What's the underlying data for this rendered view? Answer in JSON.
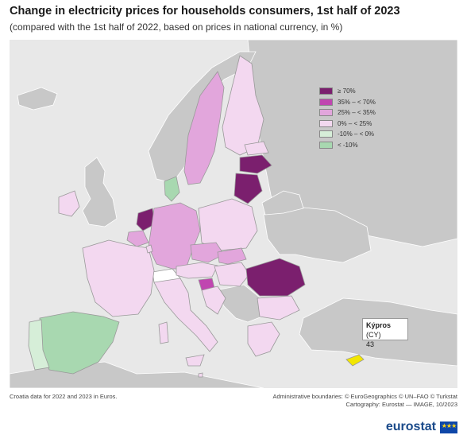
{
  "title": "Change in electricity prices for households consumers, 1st half of 2023",
  "subtitle": "(compared with the 1st half of 2022, based on prices in national currency, in %)",
  "legend": [
    {
      "label": "≥ 70%",
      "color": "#7b1f6e"
    },
    {
      "label": "35% – < 70%",
      "color": "#c046b0"
    },
    {
      "label": "25% – < 35%",
      "color": "#e2a6dc"
    },
    {
      "label": "0% – < 25%",
      "color": "#f3d8f0"
    },
    {
      "label": "-10% – < 0%",
      "color": "#d6eed8"
    },
    {
      "label": "< -10%",
      "color": "#a8d8b0"
    }
  ],
  "colors": {
    "sea": "#e8e8e8",
    "non_eu": "#c8c8c8",
    "no_data": "#ffffff",
    "highlight": "#f2e600"
  },
  "callout": {
    "country": "Kýpros",
    "code": "(CY)",
    "value": "43"
  },
  "footnote": "Croatia data for 2022 and 2023 in Euros.",
  "credits": [
    "Administrative boundaries: © EuroGeographics © UN–FAO © Turkstat",
    "Cartography: Eurostat — IMAGE, 10/2023"
  ],
  "logo": {
    "text": "eurostat",
    "flag_stars": "★★★"
  }
}
